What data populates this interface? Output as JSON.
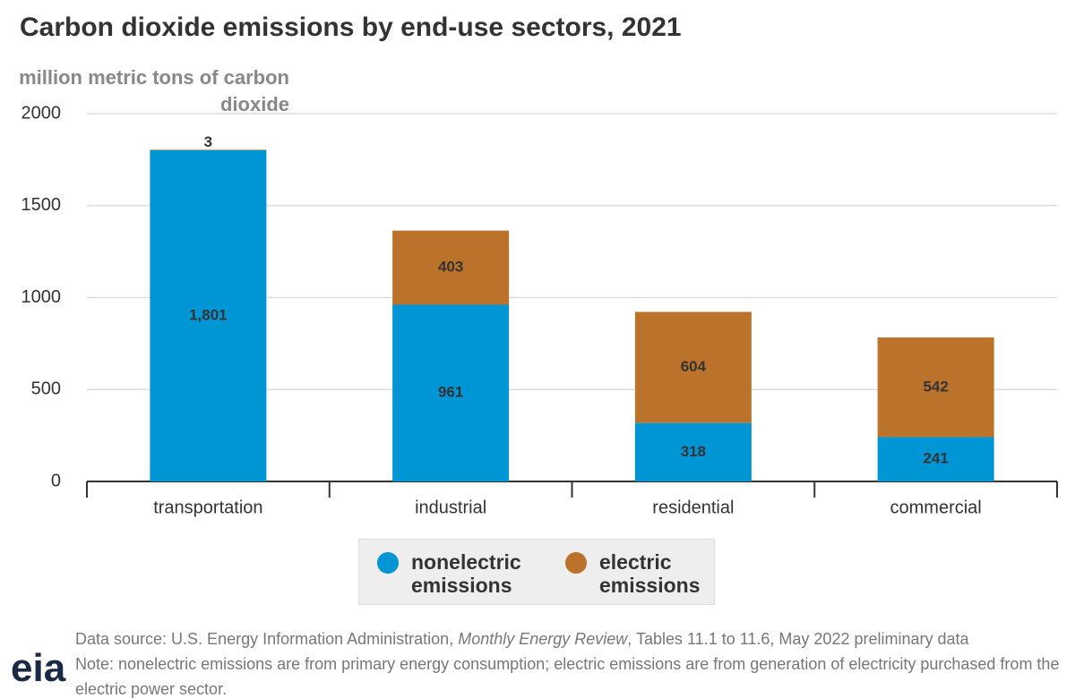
{
  "chart_data": {
    "type": "stacked-bar",
    "title": "Carbon dioxide emissions by end-use sectors, 2021",
    "y_label": "million metric tons of carbon dioxide",
    "categories": [
      "transportation",
      "industrial",
      "residential",
      "commercial"
    ],
    "series": [
      {
        "name": "nonelectric emissions",
        "color": "#0096d6",
        "values": [
          1801,
          961,
          318,
          241
        ],
        "value_labels": [
          "1,801",
          "961",
          "318",
          "241"
        ]
      },
      {
        "name": "electric emissions",
        "color": "#bb732c",
        "values": [
          3,
          403,
          604,
          542
        ]
      }
    ],
    "ylim": [
      0,
      2000
    ],
    "yticks": [
      0,
      500,
      1000,
      1500,
      2000
    ],
    "grid": true,
    "source_prefix": "Data source: U.S. Energy Information Administration, ",
    "source_italic": "Monthly Energy Review",
    "source_suffix": ", Tables 11.1 to 11.6, May 2022 preliminary data",
    "note": "Note: nonelectric emissions are from primary energy consumption; electric emissions are from generation of electricity purchased from the electric power sector.",
    "logo": "eia"
  }
}
